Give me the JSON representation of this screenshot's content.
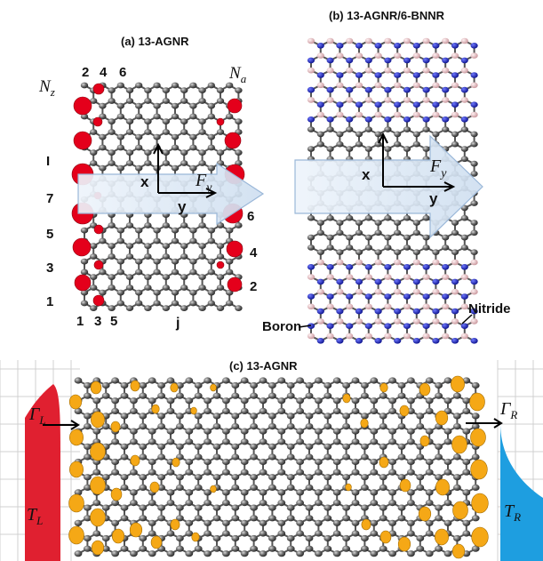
{
  "panel_a": {
    "title": "(a) 13-AGNR",
    "nz_symbol": "N",
    "nz_sub": "z",
    "na_symbol": "N",
    "na_sub": "a",
    "top_numbers": [
      "2",
      "4",
      "6"
    ],
    "left_rows": [
      "I",
      "7",
      "5",
      "3",
      "1"
    ],
    "right_rows": [
      "6",
      "4",
      "2"
    ],
    "bottom_numbers": [
      "1",
      "3",
      "5"
    ],
    "bottom_j": "j",
    "axis_x": "x",
    "axis_y": "y",
    "force_symbol": "F",
    "force_sub": "y"
  },
  "panel_b": {
    "title": "(b) 13-AGNR/6-BNNR",
    "axis_x": "x",
    "axis_y": "y",
    "force_symbol": "F",
    "force_sub": "y",
    "boron_label": "Boron",
    "nitride_label": "Nitride"
  },
  "panel_c": {
    "title": "(c) 13-AGNR",
    "gamma_left_symbol": "Γ",
    "gamma_left_sub": "L",
    "gamma_right_symbol": "Γ",
    "gamma_right_sub": "R",
    "t_left_symbol": "T",
    "t_left_sub": "L",
    "t_right_symbol": "T",
    "t_right_sub": "R"
  },
  "colors": {
    "carbon": "#3a3a3a",
    "edge_charge": "#e4001b",
    "edge_charge_c": "#f5a816",
    "boron": "#e8b7bd",
    "nitrogen": "#1a22c0",
    "arrow_fill": "#dce8f5",
    "arrow_stroke": "#9ab7d8",
    "left_lead": "#e02030",
    "right_lead": "#1e9ee0"
  }
}
